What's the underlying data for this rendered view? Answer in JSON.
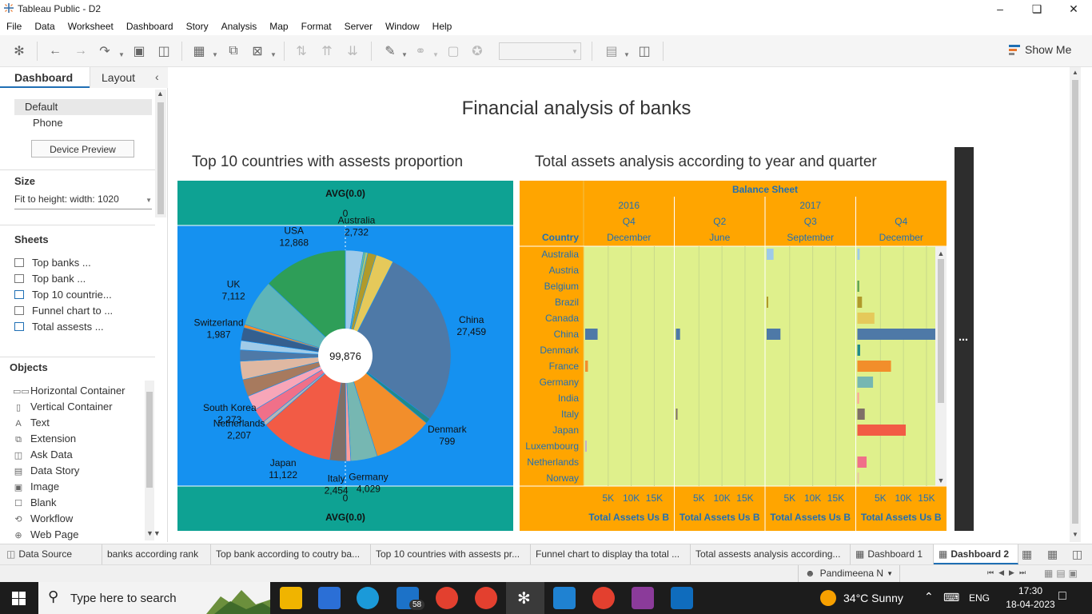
{
  "window": {
    "title": "Tableau Public - D2"
  },
  "menu": [
    "File",
    "Data",
    "Worksheet",
    "Dashboard",
    "Story",
    "Analysis",
    "Map",
    "Format",
    "Server",
    "Window",
    "Help"
  ],
  "toolbar": {
    "show_me": "Show Me"
  },
  "left_pane": {
    "tabs": [
      "Dashboard",
      "Layout"
    ],
    "devices": [
      "Default",
      "Phone"
    ],
    "device_preview": "Device Preview",
    "size_heading": "Size",
    "size_value": "Fit to height: width: 1020",
    "sheets_heading": "Sheets",
    "sheets": [
      "Top banks ...",
      "Top bank ...",
      "Top 10 countrie...",
      "Funnel chart to ...",
      "Total assests ..."
    ],
    "objects_heading": "Objects",
    "objects": [
      {
        "icon": "horizontal-container-icon",
        "glyph": "▭▭",
        "label": "Horizontal Container"
      },
      {
        "icon": "vertical-container-icon",
        "glyph": "▯",
        "label": "Vertical Container"
      },
      {
        "icon": "text-icon",
        "glyph": "A",
        "label": "Text"
      },
      {
        "icon": "extension-icon",
        "glyph": "⧉",
        "label": "Extension"
      },
      {
        "icon": "ask-data-icon",
        "glyph": "◫",
        "label": "Ask Data"
      },
      {
        "icon": "data-story-icon",
        "glyph": "▤",
        "label": "Data Story"
      },
      {
        "icon": "image-icon",
        "glyph": "▣",
        "label": "Image"
      },
      {
        "icon": "blank-icon",
        "glyph": "☐",
        "label": "Blank"
      },
      {
        "icon": "workflow-icon",
        "glyph": "⟲",
        "label": "Workflow"
      },
      {
        "icon": "web-page-icon",
        "glyph": "⊕",
        "label": "Web Page"
      }
    ]
  },
  "dashboard": {
    "title": "Financial analysis of banks",
    "left_title": "Top 10 countries with assests proportion",
    "right_title": "Total assets analysis according to year and quarter"
  },
  "chart_data": [
    {
      "type": "pie",
      "title": "Top 10 countries with assests proportion",
      "center_total": "99,876",
      "top_axis": {
        "title": "AVG(0.0)",
        "tick": "0"
      },
      "bottom_axis": {
        "title": "AVG(0.0)",
        "tick": "0"
      },
      "slices": [
        {
          "name": "Australia",
          "value": 2732,
          "label": "2,732",
          "color": "#9ecae9",
          "labeled": true
        },
        {
          "name": "s2",
          "value": 250,
          "color": "#7fc97f",
          "labeled": false
        },
        {
          "name": "s3",
          "value": 420,
          "color": "#a9c77b",
          "labeled": false
        },
        {
          "name": "s4",
          "value": 1300,
          "color": "#b09a2b",
          "labeled": false
        },
        {
          "name": "s5",
          "value": 2700,
          "color": "#e5c95a",
          "labeled": false
        },
        {
          "name": "China",
          "value": 27459,
          "label": "27,459",
          "color": "#4e79a7",
          "labeled": true
        },
        {
          "name": "Denmark",
          "value": 799,
          "label": "799",
          "color": "#1f8a8a",
          "labeled": true
        },
        {
          "name": "s8",
          "value": 9000,
          "color": "#f28e2b",
          "labeled": false
        },
        {
          "name": "Germany",
          "value": 4029,
          "label": "4,029",
          "color": "#76b7b2",
          "labeled": true
        },
        {
          "name": "s10",
          "value": 700,
          "color": "#ff9d9a",
          "labeled": false
        },
        {
          "name": "Italy",
          "value": 2454,
          "label": "2,454",
          "color": "#7f6f67",
          "labeled": true
        },
        {
          "name": "Japan",
          "value": 11122,
          "label": "11,122",
          "color": "#f25b45",
          "labeled": true
        },
        {
          "name": "s13",
          "value": 600,
          "color": "#b6b6b6",
          "labeled": false
        },
        {
          "name": "Netherlands",
          "value": 2207,
          "label": "2,207",
          "color": "#f07089",
          "labeled": true
        },
        {
          "name": "South Korea",
          "value": 2273,
          "label": "2,273",
          "color": "#f7a6b8",
          "labeled": true
        },
        {
          "name": "s16",
          "value": 2600,
          "color": "#a77a5e",
          "labeled": false
        },
        {
          "name": "s17",
          "value": 2800,
          "color": "#dfb8a2",
          "labeled": false
        },
        {
          "name": "s18",
          "value": 1700,
          "color": "#4e79a7",
          "labeled": false
        },
        {
          "name": "s19",
          "value": 1400,
          "color": "#a0cbe8",
          "labeled": false
        },
        {
          "name": "Switzerland",
          "value": 1987,
          "label": "1,987",
          "color": "#345f8f",
          "labeled": true
        },
        {
          "name": "s21",
          "value": 500,
          "color": "#f28e2b",
          "labeled": false
        },
        {
          "name": "UK",
          "value": 7112,
          "label": "7,112",
          "color": "#5eb5b9",
          "labeled": true
        },
        {
          "name": "USA",
          "value": 12868,
          "label": "12,868",
          "color": "#2e9e58",
          "labeled": true
        }
      ]
    },
    {
      "type": "bar",
      "title": "Total assets analysis according to year and quarter",
      "header": "Balance Sheet",
      "row_header": "Country",
      "years": [
        {
          "label": "2016",
          "span": 1
        },
        {
          "label": "2017",
          "span": 3
        }
      ],
      "quarters": [
        "Q4",
        "Q2",
        "Q3",
        "Q4"
      ],
      "months": [
        "December",
        "June",
        "September",
        "December"
      ],
      "ticks": [
        "5K",
        "10K",
        "15K"
      ],
      "axis_title": "Total Assets Us B",
      "xlim": [
        0,
        19000
      ],
      "countries": [
        "Australia",
        "Austria",
        "Belgium",
        "Brazil",
        "Canada",
        "China",
        "Denmark",
        "France",
        "Germany",
        "India",
        "Italy",
        "Japan",
        "Luxembourg",
        "Netherlands",
        "Norway"
      ],
      "colors": [
        "#9ecae9",
        "#8fbce0",
        "#59a14f",
        "#b09a2b",
        "#e5c95a",
        "#4e79a7",
        "#1f8a8a",
        "#f28e2b",
        "#76b7b2",
        "#ff9d9a",
        "#7f6f67",
        "#f25b45",
        "#c4b0c8",
        "#f07089",
        "#e8c4a0"
      ],
      "series": [
        {
          "name": "Q4 December 2016",
          "values": [
            0,
            0,
            0,
            0,
            0,
            2700,
            0,
            600,
            0,
            0,
            0,
            0,
            300,
            0,
            0
          ]
        },
        {
          "name": "Q2 June 2017",
          "values": [
            0,
            0,
            0,
            0,
            0,
            900,
            0,
            0,
            0,
            0,
            300,
            0,
            0,
            0,
            0
          ]
        },
        {
          "name": "Q3 September 2017",
          "values": [
            1500,
            0,
            0,
            300,
            0,
            3000,
            0,
            0,
            0,
            0,
            0,
            0,
            0,
            0,
            0
          ]
        },
        {
          "name": "Q4 December 2017",
          "values": [
            500,
            0,
            400,
            1000,
            3700,
            18800,
            600,
            7300,
            3400,
            300,
            1600,
            10500,
            0,
            2000,
            200
          ]
        }
      ]
    }
  ],
  "sheet_tabs": [
    "Data Source",
    "banks according rank",
    "Top bank according to coutry ba...",
    "Top 10 countries with assests pr...",
    "Funnel chart to display tha total ...",
    "Total assests analysis according...",
    "Dashboard 1",
    "Dashboard 2"
  ],
  "status": {
    "user": "Pandimeena N"
  },
  "taskbar": {
    "search_placeholder": "Type here to search",
    "mail_badge": "58",
    "weather": "34°C  Sunny",
    "lang": "ENG",
    "time": "17:30",
    "date": "18-04-2023"
  }
}
